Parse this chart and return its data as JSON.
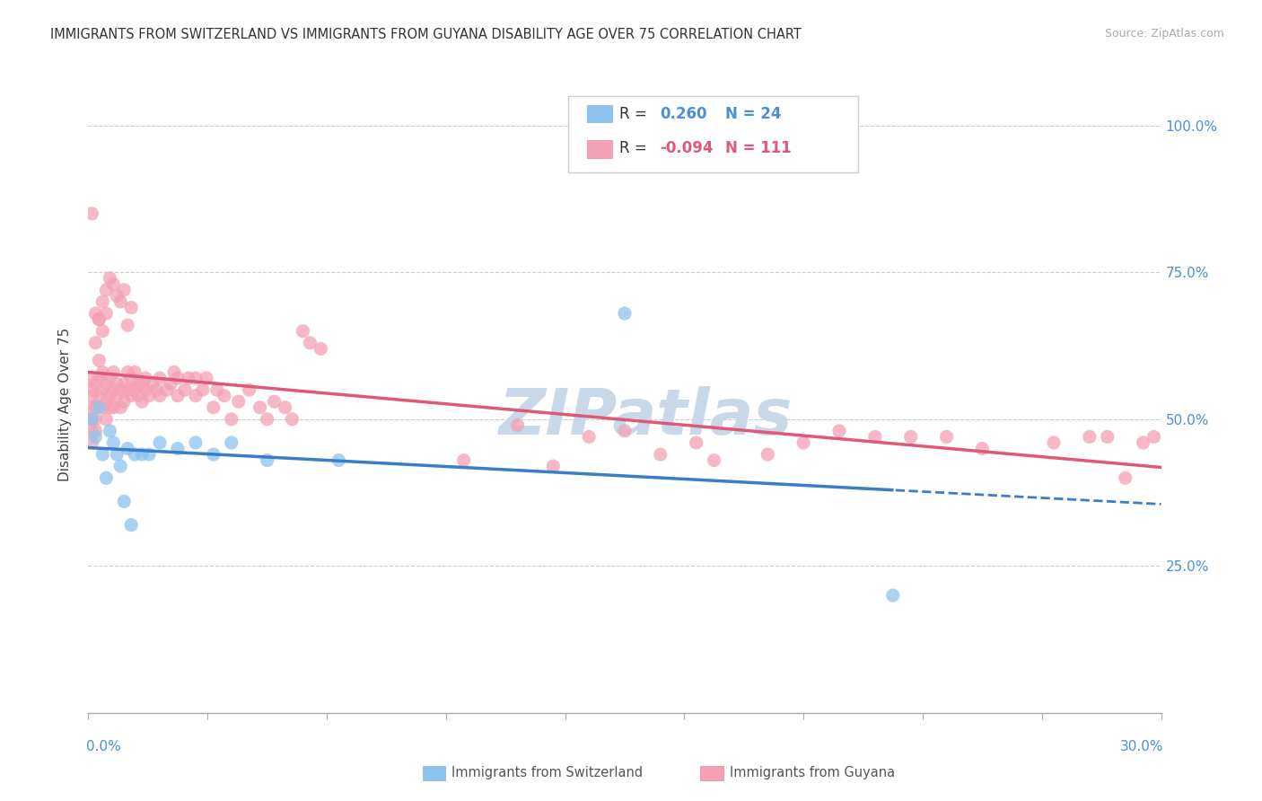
{
  "title": "IMMIGRANTS FROM SWITZERLAND VS IMMIGRANTS FROM GUYANA DISABILITY AGE OVER 75 CORRELATION CHART",
  "source": "Source: ZipAtlas.com",
  "ylabel": "Disability Age Over 75",
  "xlim": [
    0.0,
    0.3
  ],
  "ylim": [
    0.0,
    1.05
  ],
  "switzerland_R": 0.26,
  "switzerland_N": 24,
  "guyana_R": -0.094,
  "guyana_N": 111,
  "color_switzerland": "#8DC4EE",
  "color_guyana": "#F4A0B5",
  "color_trendline_switzerland": "#3A7DC9",
  "color_trendline_guyana": "#E05878",
  "watermark_color": "#C8D8E8",
  "sw_x": [
    0.001,
    0.002,
    0.003,
    0.004,
    0.005,
    0.006,
    0.007,
    0.008,
    0.009,
    0.01,
    0.011,
    0.012,
    0.013,
    0.015,
    0.017,
    0.02,
    0.025,
    0.03,
    0.035,
    0.04,
    0.05,
    0.07,
    0.15,
    0.225
  ],
  "sw_y": [
    0.5,
    0.47,
    0.52,
    0.44,
    0.4,
    0.48,
    0.46,
    0.44,
    0.42,
    0.36,
    0.45,
    0.32,
    0.44,
    0.44,
    0.44,
    0.46,
    0.45,
    0.46,
    0.44,
    0.46,
    0.43,
    0.43,
    0.68,
    0.2
  ],
  "gy_x": [
    0.001,
    0.001,
    0.001,
    0.001,
    0.001,
    0.001,
    0.001,
    0.002,
    0.002,
    0.002,
    0.002,
    0.003,
    0.003,
    0.003,
    0.004,
    0.004,
    0.004,
    0.005,
    0.005,
    0.005,
    0.006,
    0.006,
    0.006,
    0.007,
    0.007,
    0.007,
    0.008,
    0.008,
    0.009,
    0.009,
    0.01,
    0.01,
    0.011,
    0.011,
    0.012,
    0.012,
    0.013,
    0.013,
    0.014,
    0.014,
    0.015,
    0.015,
    0.016,
    0.016,
    0.017,
    0.018,
    0.019,
    0.02,
    0.02,
    0.022,
    0.023,
    0.024,
    0.025,
    0.025,
    0.027,
    0.028,
    0.03,
    0.03,
    0.032,
    0.033,
    0.035,
    0.036,
    0.038,
    0.04,
    0.042,
    0.045,
    0.048,
    0.05,
    0.052,
    0.055,
    0.057,
    0.06,
    0.062,
    0.065,
    0.001,
    0.002,
    0.003,
    0.004,
    0.005,
    0.006,
    0.007,
    0.008,
    0.009,
    0.01,
    0.011,
    0.012,
    0.002,
    0.003,
    0.004,
    0.005,
    0.12,
    0.14,
    0.15,
    0.17,
    0.19,
    0.2,
    0.21,
    0.22,
    0.24,
    0.25,
    0.27,
    0.28,
    0.285,
    0.29,
    0.295,
    0.298,
    0.105,
    0.13,
    0.16,
    0.175,
    0.23
  ],
  "gy_y": [
    0.5,
    0.52,
    0.54,
    0.55,
    0.57,
    0.48,
    0.46,
    0.5,
    0.52,
    0.56,
    0.48,
    0.54,
    0.57,
    0.6,
    0.52,
    0.55,
    0.58,
    0.53,
    0.56,
    0.5,
    0.54,
    0.57,
    0.52,
    0.55,
    0.58,
    0.52,
    0.54,
    0.56,
    0.52,
    0.55,
    0.53,
    0.56,
    0.55,
    0.58,
    0.54,
    0.57,
    0.55,
    0.58,
    0.54,
    0.56,
    0.53,
    0.56,
    0.55,
    0.57,
    0.54,
    0.56,
    0.55,
    0.54,
    0.57,
    0.55,
    0.56,
    0.58,
    0.54,
    0.57,
    0.55,
    0.57,
    0.54,
    0.57,
    0.55,
    0.57,
    0.52,
    0.55,
    0.54,
    0.5,
    0.53,
    0.55,
    0.52,
    0.5,
    0.53,
    0.52,
    0.5,
    0.65,
    0.63,
    0.62,
    0.85,
    0.68,
    0.67,
    0.7,
    0.72,
    0.74,
    0.73,
    0.71,
    0.7,
    0.72,
    0.66,
    0.69,
    0.63,
    0.67,
    0.65,
    0.68,
    0.49,
    0.47,
    0.48,
    0.46,
    0.44,
    0.46,
    0.48,
    0.47,
    0.47,
    0.45,
    0.46,
    0.47,
    0.47,
    0.4,
    0.46,
    0.47,
    0.43,
    0.42,
    0.44,
    0.43,
    0.47
  ]
}
